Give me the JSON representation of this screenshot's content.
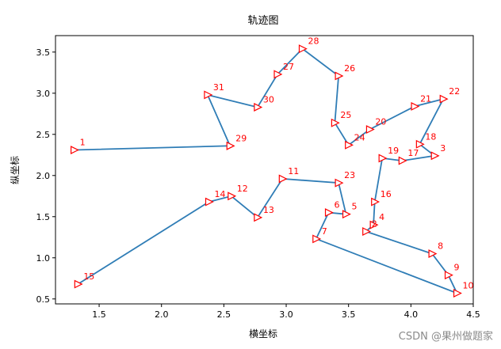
{
  "chart_data": {
    "type": "line",
    "title": "轨迹图",
    "xlabel": "横坐标",
    "ylabel": "纵坐标",
    "xlim": [
      1.15,
      4.5
    ],
    "ylim": [
      0.44,
      3.7
    ],
    "xticks": [
      "1.5",
      "2.0",
      "2.5",
      "3.0",
      "3.5",
      "4.0",
      "4.5"
    ],
    "yticks": [
      "0.5",
      "1.0",
      "1.5",
      "2.0",
      "2.5",
      "3.0",
      "3.5"
    ],
    "line_color": "#2f7db6",
    "marker_color": "#ff0000",
    "marker": "triangle-right",
    "points": [
      {
        "label": "1",
        "x": 1.3,
        "y": 2.31
      },
      {
        "label": "29",
        "x": 2.55,
        "y": 2.36
      },
      {
        "label": "31",
        "x": 2.37,
        "y": 2.98
      },
      {
        "label": "30",
        "x": 2.77,
        "y": 2.83
      },
      {
        "label": "27",
        "x": 2.93,
        "y": 3.23
      },
      {
        "label": "28",
        "x": 3.13,
        "y": 3.54
      },
      {
        "label": "26",
        "x": 3.42,
        "y": 3.21
      },
      {
        "label": "25",
        "x": 3.39,
        "y": 2.64
      },
      {
        "label": "24",
        "x": 3.5,
        "y": 2.37
      },
      {
        "label": "20",
        "x": 3.67,
        "y": 2.56
      },
      {
        "label": "21",
        "x": 4.03,
        "y": 2.84
      },
      {
        "label": "22",
        "x": 4.26,
        "y": 2.93
      },
      {
        "label": "18",
        "x": 4.07,
        "y": 2.38
      },
      {
        "label": "3",
        "x": 4.19,
        "y": 2.24
      },
      {
        "label": "17",
        "x": 3.93,
        "y": 2.18
      },
      {
        "label": "19",
        "x": 3.77,
        "y": 2.21
      },
      {
        "label": "16",
        "x": 3.71,
        "y": 1.68
      },
      {
        "label": "4",
        "x": 3.7,
        "y": 1.4
      },
      {
        "label": "2",
        "x": 3.64,
        "y": 1.32
      },
      {
        "label": "8",
        "x": 4.17,
        "y": 1.05
      },
      {
        "label": "9",
        "x": 4.3,
        "y": 0.79
      },
      {
        "label": "10",
        "x": 4.37,
        "y": 0.57
      },
      {
        "label": "7",
        "x": 3.24,
        "y": 1.23
      },
      {
        "label": "6",
        "x": 3.34,
        "y": 1.55
      },
      {
        "label": "5",
        "x": 3.48,
        "y": 1.53
      },
      {
        "label": "23",
        "x": 3.42,
        "y": 1.91
      },
      {
        "label": "11",
        "x": 2.97,
        "y": 1.96
      },
      {
        "label": "13",
        "x": 2.77,
        "y": 1.49
      },
      {
        "label": "12",
        "x": 2.56,
        "y": 1.75
      },
      {
        "label": "14",
        "x": 2.38,
        "y": 1.68
      },
      {
        "label": "15",
        "x": 1.33,
        "y": 0.68
      }
    ]
  },
  "watermark": "CSDN @果州做题家"
}
